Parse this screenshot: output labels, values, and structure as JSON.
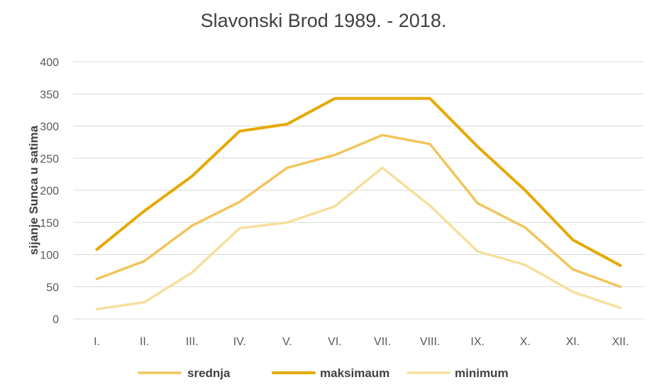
{
  "chart_data": {
    "type": "line",
    "title": "Slavonski Brod 1989. - 2018.",
    "xlabel": "",
    "ylabel": "sijanje Sunca u satima",
    "ylim": [
      0,
      400
    ],
    "yticks": [
      0,
      50,
      100,
      150,
      200,
      250,
      300,
      350,
      400
    ],
    "grid": true,
    "legend_position": "bottom",
    "categories": [
      "I.",
      "II.",
      "III.",
      "IV.",
      "V.",
      "VI.",
      "VII.",
      "VIII.",
      "IX.",
      "X.",
      "XI.",
      "XII."
    ],
    "series": [
      {
        "name": "srednja",
        "color": "#f2c45a",
        "values": [
          62,
          90,
          145,
          182,
          235,
          255,
          286,
          272,
          180,
          142,
          77,
          50
        ]
      },
      {
        "name": "maksimaum",
        "color": "#e6a800",
        "values": [
          108,
          168,
          222,
          292,
          303,
          343,
          343,
          343,
          268,
          200,
          123,
          83
        ]
      },
      {
        "name": "minimum",
        "color": "#f6df9c",
        "values": [
          15,
          26,
          72,
          141,
          150,
          175,
          235,
          176,
          105,
          84,
          42,
          17
        ]
      }
    ]
  }
}
